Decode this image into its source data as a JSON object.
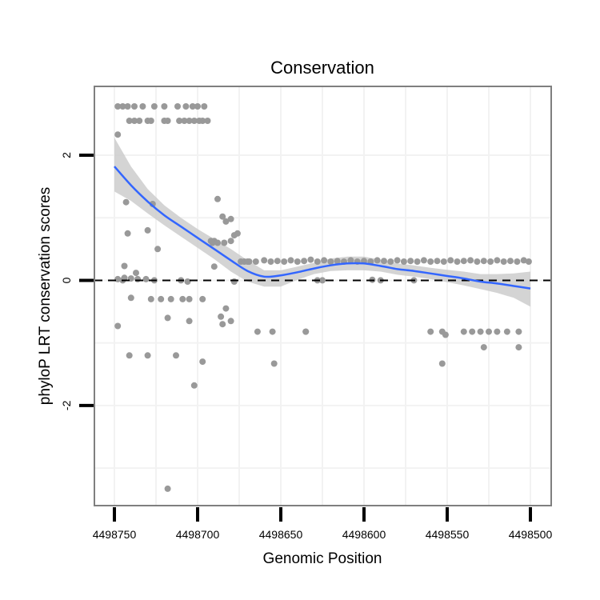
{
  "chart_data": {
    "type": "scatter",
    "title": "Conservation",
    "xlabel": "Genomic Position",
    "ylabel": "phyloP LRT conservation scores",
    "x_reversed": true,
    "xlim": [
      4498500,
      4498750
    ],
    "ylim": [
      -3.6,
      3.1
    ],
    "x_ticks": [
      4498750,
      4498700,
      4498650,
      4498600,
      4498550,
      4498500
    ],
    "x_tick_labels": [
      "4498750",
      "4498700",
      "4498650",
      "4498600",
      "4498550",
      "4498500"
    ],
    "y_ticks": [
      -2,
      0,
      2
    ],
    "y_tick_labels": [
      "-2",
      "0",
      "2"
    ],
    "reference_line": {
      "y": 0,
      "style": "dashed"
    },
    "colors": {
      "points": "#999999",
      "smooth": "#3366FF",
      "band": "#cccccc",
      "grid": "#f2f2f2",
      "panel_border": "#7f7f7f"
    },
    "points": {
      "x": [
        4498748,
        4498745,
        4498742,
        4498738,
        4498733,
        4498726,
        4498720,
        4498712,
        4498707,
        4498703,
        4498700,
        4498696,
        4498741,
        4498738,
        4498735,
        4498730,
        4498728,
        4498720,
        4498718,
        4498711,
        4498708,
        4498705,
        4498702,
        4498699,
        4498697,
        4498694,
        4498748,
        4498743,
        4498742,
        4498744,
        4498745,
        4498737,
        4498740,
        4498730,
        4498727,
        4498724,
        4498718,
        4498713,
        4498705,
        4498702,
        4498697,
        4498692,
        4498690,
        4498688,
        4498685,
        4498683,
        4498680,
        4498678,
        4498748,
        4498741,
        4498730,
        4498726,
        4498718,
        4498710,
        4498706,
        4498690,
        4498686,
        4498685,
        4498683,
        4498680,
        4498748,
        4498744,
        4498740,
        4498736,
        4498731,
        4498728,
        4498722,
        4498716,
        4498709,
        4498705,
        4498697,
        4498691,
        4498688,
        4498684,
        4498680,
        4498678,
        4498676,
        4498674,
        4498672,
        4498670,
        4498669,
        4498664,
        4498655,
        4498635,
        4498654,
        4498635,
        4498665,
        4498660,
        4498656,
        4498652,
        4498648,
        4498644,
        4498640,
        4498636,
        4498632,
        4498628,
        4498624,
        4498620,
        4498616,
        4498612,
        4498608,
        4498604,
        4498600,
        4498596,
        4498592,
        4498588,
        4498584,
        4498580,
        4498576,
        4498572,
        4498568,
        4498564,
        4498560,
        4498556,
        4498552,
        4498548,
        4498544,
        4498540,
        4498536,
        4498532,
        4498528,
        4498524,
        4498520,
        4498516,
        4498512,
        4498508,
        4498504,
        4498501,
        4498625,
        4498628,
        4498595,
        4498590,
        4498570,
        4498560,
        4498553,
        4498551,
        4498540,
        4498535,
        4498530,
        4498525,
        4498520,
        4498514,
        4498507,
        4498553,
        4498528,
        4498507
      ],
      "y": [
        2.78,
        2.78,
        2.78,
        2.78,
        2.78,
        2.78,
        2.78,
        2.78,
        2.78,
        2.78,
        2.78,
        2.78,
        2.55,
        2.55,
        2.55,
        2.55,
        2.55,
        2.55,
        2.55,
        2.55,
        2.55,
        2.55,
        2.55,
        2.55,
        2.55,
        2.55,
        2.33,
        1.25,
        0.75,
        0.23,
        0,
        0.12,
        -0.28,
        0.8,
        1.22,
        0.5,
        -0.6,
        -1.2,
        -0.65,
        -1.68,
        -1.3,
        0.63,
        0.63,
        1.3,
        1.02,
        0.94,
        0.98,
        -0.02,
        -0.73,
        -1.2,
        -1.2,
        0,
        -3.33,
        0,
        -0.02,
        0.22,
        -0.58,
        -0.7,
        -0.45,
        -0.65,
        0.02,
        0.04,
        0.03,
        0.02,
        0.02,
        -0.3,
        -0.3,
        -0.3,
        -0.3,
        -0.3,
        -0.3,
        0.6,
        0.6,
        0.6,
        0.63,
        0.72,
        0.75,
        0.3,
        0.3,
        0.3,
        0.3,
        -0.82,
        -0.82,
        -0.82,
        -1.33,
        -0.82,
        0.3,
        0.32,
        0.3,
        0.31,
        0.3,
        0.32,
        0.3,
        0.31,
        0.33,
        0.3,
        0.32,
        0.3,
        0.31,
        0.3,
        0.32,
        0.3,
        0.31,
        0.3,
        0.32,
        0.31,
        0.3,
        0.32,
        0.3,
        0.31,
        0.3,
        0.32,
        0.3,
        0.31,
        0.3,
        0.32,
        0.3,
        0.31,
        0.32,
        0.3,
        0.31,
        0.3,
        0.32,
        0.3,
        0.31,
        0.3,
        0.32,
        0.3,
        0,
        0,
        0.01,
        0,
        0,
        -0.82,
        -0.82,
        -0.87,
        -0.82,
        -0.82,
        -0.82,
        -0.82,
        -0.82,
        -0.82,
        -0.82,
        -1.33,
        -1.07,
        -1.07
      ]
    },
    "smooth": {
      "x": [
        4498750,
        4498740,
        4498730,
        4498720,
        4498710,
        4498700,
        4498690,
        4498680,
        4498670,
        4498660,
        4498650,
        4498640,
        4498630,
        4498620,
        4498610,
        4498600,
        4498590,
        4498580,
        4498570,
        4498560,
        4498550,
        4498540,
        4498530,
        4498520,
        4498510,
        4498500
      ],
      "y": [
        1.82,
        1.52,
        1.26,
        1.04,
        0.86,
        0.68,
        0.5,
        0.32,
        0.15,
        0.06,
        0.08,
        0.13,
        0.19,
        0.24,
        0.27,
        0.27,
        0.23,
        0.18,
        0.15,
        0.11,
        0.07,
        0.03,
        -0.02,
        -0.05,
        -0.09,
        -0.13
      ],
      "upper": [
        2.28,
        1.82,
        1.46,
        1.2,
        1.0,
        0.82,
        0.66,
        0.5,
        0.32,
        0.16,
        0.16,
        0.22,
        0.28,
        0.35,
        0.38,
        0.38,
        0.33,
        0.27,
        0.24,
        0.2,
        0.17,
        0.14,
        0.1,
        0.1,
        0.11,
        0.14
      ],
      "lower": [
        1.42,
        1.27,
        1.07,
        0.88,
        0.7,
        0.52,
        0.34,
        0.14,
        -0.02,
        -0.1,
        -0.1,
        0.01,
        0.1,
        0.15,
        0.16,
        0.16,
        0.14,
        0.09,
        0.06,
        0.02,
        -0.03,
        -0.08,
        -0.14,
        -0.2,
        -0.28,
        -0.42
      ]
    }
  }
}
